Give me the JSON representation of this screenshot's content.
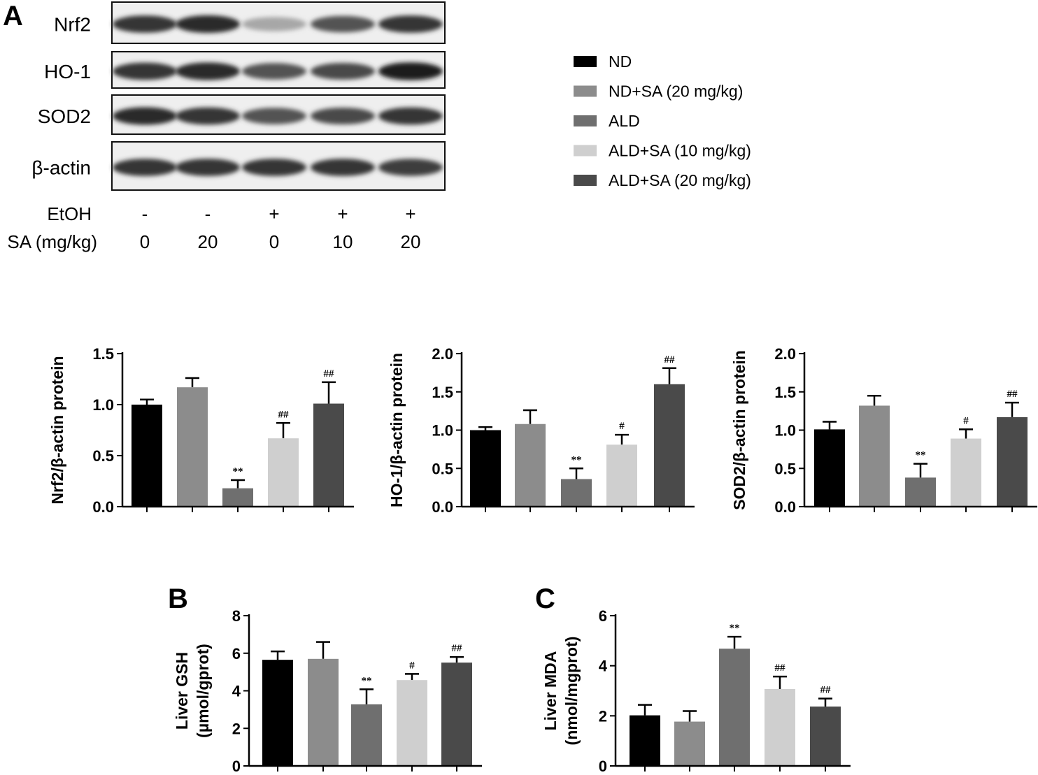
{
  "panel_labels": [
    "A",
    "B",
    "C"
  ],
  "blot": {
    "rows": [
      "Nrf2",
      "HO-1",
      "SOD2",
      "β-actin"
    ],
    "band_intensity": [
      [
        0.85,
        0.9,
        0.3,
        0.7,
        0.85
      ],
      [
        0.85,
        0.9,
        0.7,
        0.75,
        0.95
      ],
      [
        0.9,
        0.85,
        0.7,
        0.75,
        0.85
      ],
      [
        0.85,
        0.85,
        0.85,
        0.85,
        0.8
      ]
    ],
    "conditions": [
      {
        "label": "EtOH",
        "values": [
          "-",
          "-",
          "+",
          "+",
          "+"
        ]
      },
      {
        "label": "SA (mg/kg)",
        "values": [
          "0",
          "20",
          "0",
          "10",
          "20"
        ]
      }
    ]
  },
  "legend": [
    {
      "label": "ND",
      "color": "#000000"
    },
    {
      "label": "ND+SA (20 mg/kg)",
      "color": "#8c8c8c"
    },
    {
      "label": "ALD",
      "color": "#6f6f6f"
    },
    {
      "label": "ALD+SA (10 mg/kg)",
      "color": "#cfcfcf"
    },
    {
      "label": "ALD+SA (20 mg/kg)",
      "color": "#4a4a4a"
    }
  ],
  "chart_data": [
    {
      "type": "bar",
      "panel": "A",
      "ylabel": "Nrf2/β-actin protein",
      "ylim": [
        0,
        1.5
      ],
      "yticks": [
        "0.0",
        "0.5",
        "1.0",
        "1.5"
      ],
      "categories": [
        "ND",
        "ND+SA (20 mg/kg)",
        "ALD",
        "ALD+SA (10 mg/kg)",
        "ALD+SA (20 mg/kg)"
      ],
      "values": [
        1.0,
        1.17,
        0.18,
        0.67,
        1.01
      ],
      "errors": [
        0.05,
        0.09,
        0.08,
        0.15,
        0.21
      ],
      "annotations": [
        "",
        "",
        "**",
        "##",
        "##"
      ]
    },
    {
      "type": "bar",
      "panel": "A",
      "ylabel": "HO-1/β-actin protein",
      "ylim": [
        0,
        2.0
      ],
      "yticks": [
        "0.0",
        "0.5",
        "1.0",
        "1.5",
        "2.0"
      ],
      "categories": [
        "ND",
        "ND+SA (20 mg/kg)",
        "ALD",
        "ALD+SA (10 mg/kg)",
        "ALD+SA (20 mg/kg)"
      ],
      "values": [
        1.0,
        1.08,
        0.36,
        0.81,
        1.6
      ],
      "errors": [
        0.04,
        0.18,
        0.14,
        0.13,
        0.21
      ],
      "annotations": [
        "",
        "",
        "**",
        "#",
        "##"
      ]
    },
    {
      "type": "bar",
      "panel": "A",
      "ylabel": "SOD2/β-actin protein",
      "ylim": [
        0,
        2.0
      ],
      "yticks": [
        "0.0",
        "0.5",
        "1.0",
        "1.5",
        "2.0"
      ],
      "categories": [
        "ND",
        "ND+SA (20 mg/kg)",
        "ALD",
        "ALD+SA (10 mg/kg)",
        "ALD+SA (20 mg/kg)"
      ],
      "values": [
        1.01,
        1.32,
        0.38,
        0.89,
        1.17
      ],
      "errors": [
        0.1,
        0.13,
        0.18,
        0.12,
        0.19
      ],
      "annotations": [
        "",
        "",
        "**",
        "#",
        "##"
      ]
    },
    {
      "type": "bar",
      "panel": "B",
      "ylabel": "Liver GSH",
      "ylabel2": "(µmol/gprot)",
      "ylim": [
        0,
        8
      ],
      "yticks": [
        "0",
        "2",
        "4",
        "6",
        "8"
      ],
      "categories": [
        "ND",
        "ND+SA (20 mg/kg)",
        "ALD",
        "ALD+SA (10 mg/kg)",
        "ALD+SA (20 mg/kg)"
      ],
      "values": [
        5.65,
        5.7,
        3.28,
        4.57,
        5.5
      ],
      "errors": [
        0.45,
        0.9,
        0.8,
        0.33,
        0.3
      ],
      "annotations": [
        "",
        "",
        "**",
        "#",
        "##"
      ]
    },
    {
      "type": "bar",
      "panel": "C",
      "ylabel": "Liver MDA",
      "ylabel2": "(nmol/mgprot)",
      "ylim": [
        0,
        6
      ],
      "yticks": [
        "0",
        "2",
        "4",
        "6"
      ],
      "categories": [
        "ND",
        "ND+SA (20 mg/kg)",
        "ALD",
        "ALD+SA (10 mg/kg)",
        "ALD+SA (20 mg/kg)"
      ],
      "values": [
        2.02,
        1.77,
        4.68,
        3.07,
        2.37
      ],
      "errors": [
        0.42,
        0.42,
        0.48,
        0.5,
        0.32
      ],
      "annotations": [
        "",
        "",
        "**",
        "##",
        "##"
      ]
    }
  ]
}
